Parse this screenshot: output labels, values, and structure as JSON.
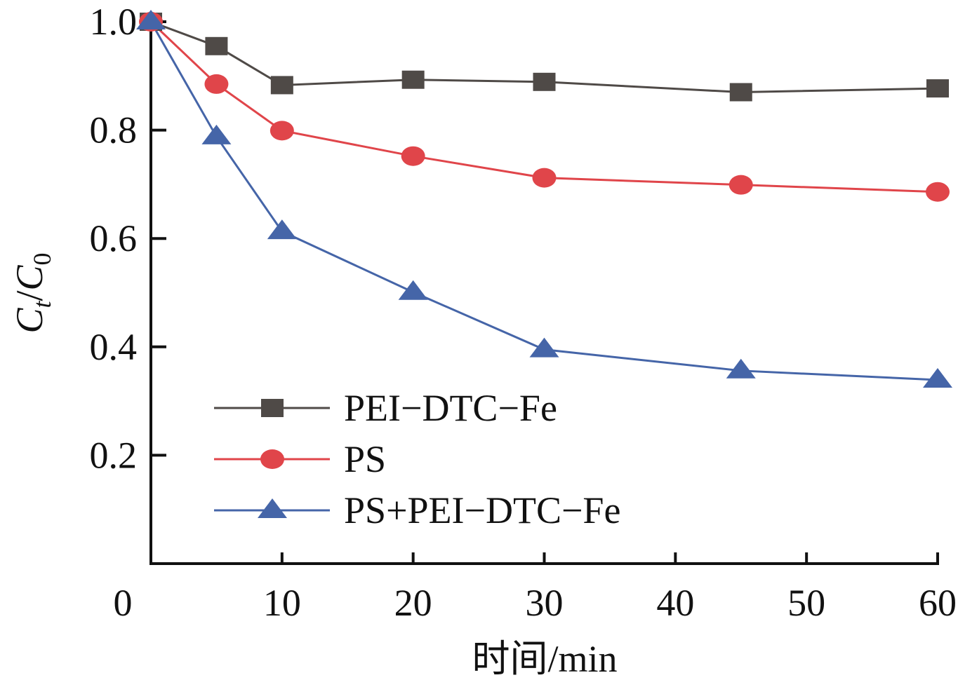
{
  "chart_data": {
    "type": "line",
    "title": "",
    "xlabel": "时间/min",
    "ylabel": {
      "main": "C",
      "sub1": "t",
      "sep": "/",
      "main2": "C",
      "sub2": "0"
    },
    "xlim": [
      0,
      60
    ],
    "ylim": [
      0,
      1.0
    ],
    "xticks": [
      0,
      10,
      20,
      30,
      40,
      50,
      60
    ],
    "xtick_labels": [
      "0",
      "10",
      "20",
      "30",
      "40",
      "50",
      "60"
    ],
    "yticks": [
      0.2,
      0.4,
      0.6,
      0.8,
      1.0
    ],
    "ytick_labels": [
      "0.2",
      "0.4",
      "0.6",
      "0.8",
      "1.0"
    ],
    "grid": false,
    "legend_position": "bottom-left",
    "x": [
      0,
      5,
      10,
      20,
      30,
      45,
      60
    ],
    "series": [
      {
        "name": "PEI−DTC−Fe",
        "marker": "square",
        "color": "#4f4a47",
        "values": [
          1.0,
          0.955,
          0.883,
          0.893,
          0.889,
          0.87,
          0.877
        ]
      },
      {
        "name": "PS",
        "marker": "circle",
        "color": "#e0454a",
        "values": [
          1.0,
          0.885,
          0.799,
          0.752,
          0.712,
          0.699,
          0.686
        ]
      },
      {
        "name": "PS+PEI−DTC−Fe",
        "marker": "triangle",
        "color": "#4565a8",
        "values": [
          1.0,
          0.788,
          0.613,
          0.501,
          0.395,
          0.356,
          0.339
        ]
      }
    ]
  }
}
